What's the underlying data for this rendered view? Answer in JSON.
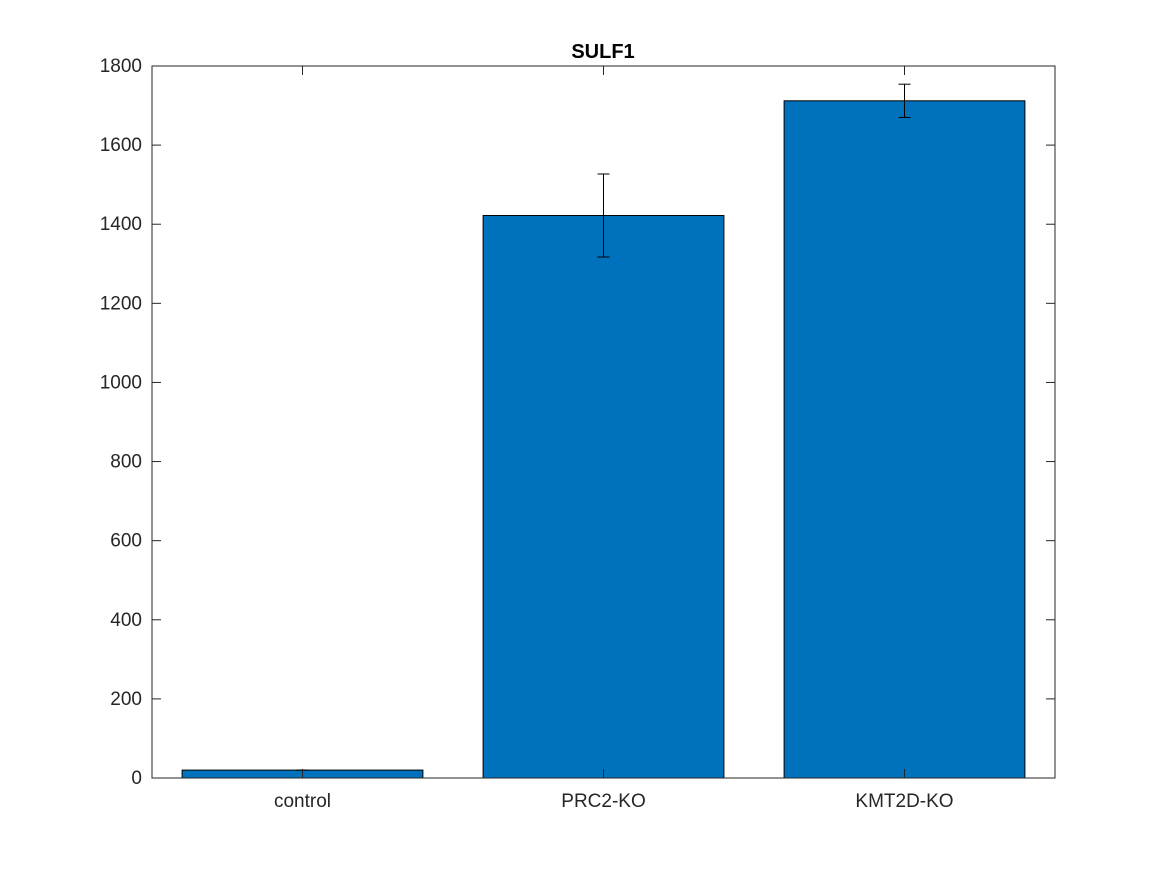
{
  "colors": {
    "bar_fill": "#0072BD",
    "bar_edge": "#000000",
    "axes": "#262626",
    "error_bar": "#000000",
    "background": "#ffffff"
  },
  "chart_data": {
    "type": "bar",
    "title": "SULF1",
    "xlabel": "",
    "ylabel": "",
    "categories": [
      "control",
      "PRC2-KO",
      "KMT2D-KO"
    ],
    "values": [
      20,
      1422,
      1712
    ],
    "error_bars": [
      {
        "lower": 20,
        "upper": 20
      },
      {
        "lower": 1317,
        "upper": 1527
      },
      {
        "lower": 1670,
        "upper": 1754
      }
    ],
    "ylim": [
      0,
      1800
    ],
    "yticks": [
      0,
      200,
      400,
      600,
      800,
      1000,
      1200,
      1400,
      1600,
      1800
    ],
    "grid": false,
    "legend": "none",
    "box": true
  }
}
